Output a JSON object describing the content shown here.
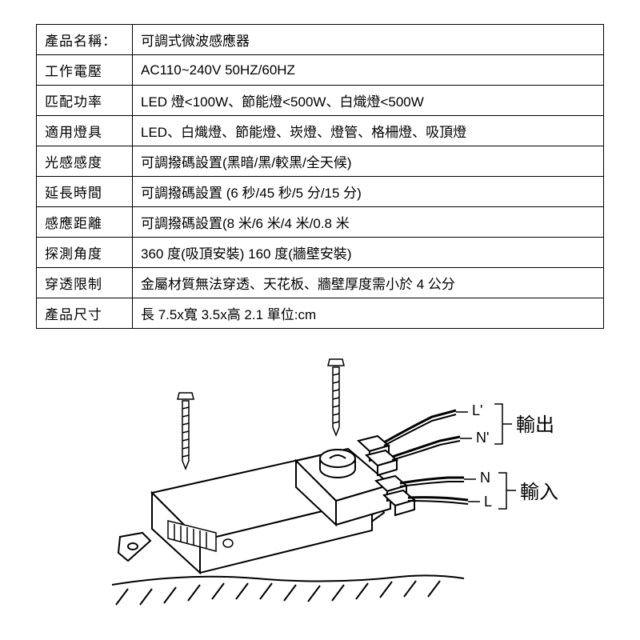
{
  "table": {
    "rows": [
      {
        "label": "產品名稱：",
        "value": "可調式微波感應器"
      },
      {
        "label": "工作電壓",
        "value": "AC110~240V 50HZ/60HZ"
      },
      {
        "label": "匹配功率",
        "value": "LED 燈<100W、節能燈<500W、白熾燈<500W"
      },
      {
        "label": "適用燈具",
        "value": "LED、白熾燈、節能燈、崁燈、燈管、格柵燈、吸頂燈"
      },
      {
        "label": "光感感度",
        "value": "可調撥碼設置(黑暗/黑/較黑/全天候)"
      },
      {
        "label": "延長時間",
        "value": "可調撥碼設置  (6 秒/45 秒/5 分/15 分)"
      },
      {
        "label": "感應距離",
        "value": "可調撥碼設置(8 米/6 米/4 米/0.8 米"
      },
      {
        "label": "探測角度",
        "value": "360 度(吸頂安裝) 160 度(牆壁安裝)"
      },
      {
        "label": "穿透限制",
        "value": "金屬材質無法穿透、天花板、牆壁厚度需小於 4 公分"
      },
      {
        "label": "產品尺寸",
        "value": "長 7.5x寬 3.5x高 2.1  單位:cm"
      }
    ]
  },
  "diagram": {
    "output_label": "輸出",
    "input_label": "輸入",
    "terminals": {
      "out_l": "L'",
      "out_n": "N'",
      "in_n": "N",
      "in_l": "L"
    },
    "colors": {
      "stroke": "#000000",
      "fill": "#ffffff"
    }
  }
}
